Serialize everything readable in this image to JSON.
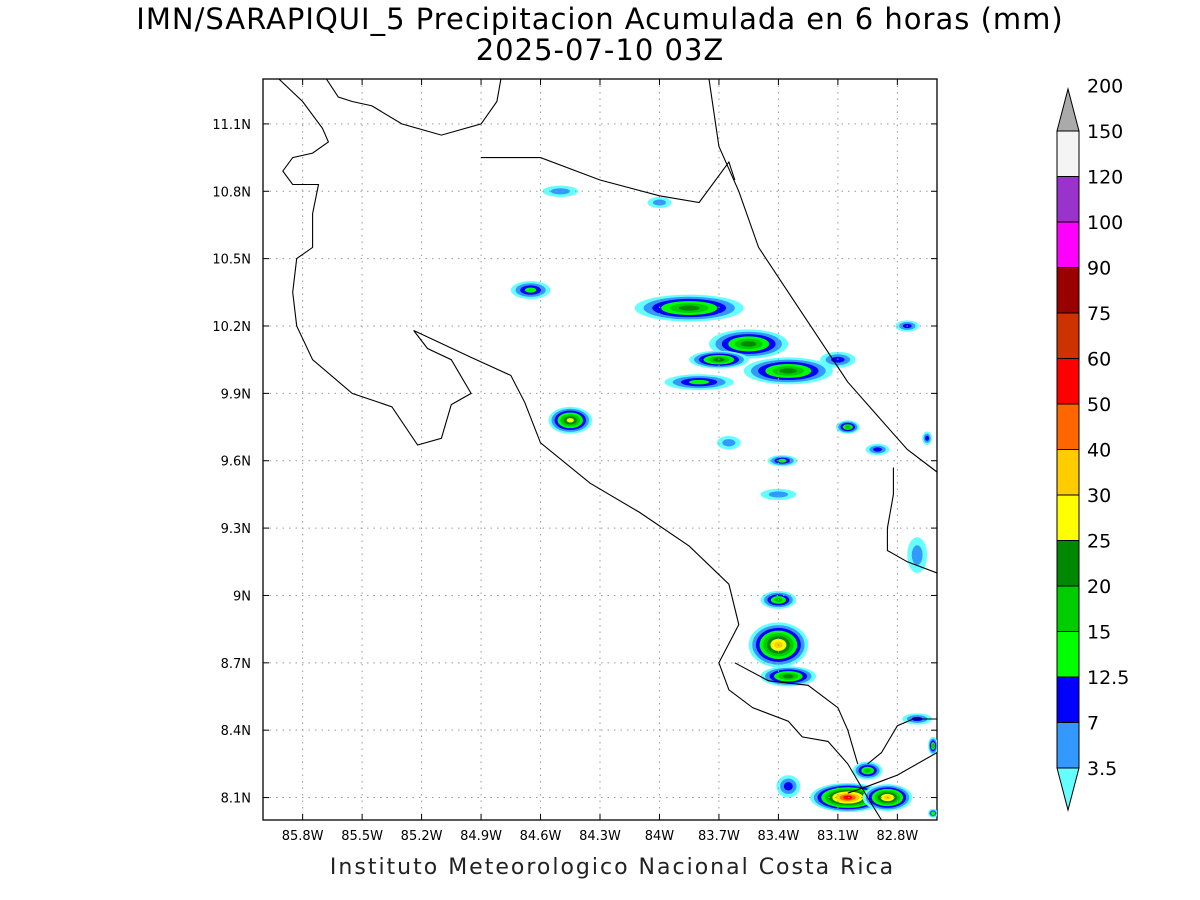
{
  "title": "IMN/SARAPIQUI_5 Precipitacion Acumulada en 6 horas (mm)",
  "subtitle": "2025-07-10 03Z",
  "footer": "Instituto Meteorologico Nacional Costa Rica",
  "map": {
    "lon_range": [
      -86.0,
      -82.6
    ],
    "lat_range": [
      8.0,
      11.3
    ],
    "lon_ticks": [
      {
        "value": -85.8,
        "label": "85.8W"
      },
      {
        "value": -85.5,
        "label": "85.5W"
      },
      {
        "value": -85.2,
        "label": "85.2W"
      },
      {
        "value": -84.9,
        "label": "84.9W"
      },
      {
        "value": -84.6,
        "label": "84.6W"
      },
      {
        "value": -84.3,
        "label": "84.3W"
      },
      {
        "value": -84.0,
        "label": "84W"
      },
      {
        "value": -83.7,
        "label": "83.7W"
      },
      {
        "value": -83.4,
        "label": "83.4W"
      },
      {
        "value": -83.1,
        "label": "83.1W"
      },
      {
        "value": -82.8,
        "label": "82.8W"
      }
    ],
    "lat_ticks": [
      {
        "value": 11.1,
        "label": "11.1N"
      },
      {
        "value": 10.8,
        "label": "10.8N"
      },
      {
        "value": 10.5,
        "label": "10.5N"
      },
      {
        "value": 10.2,
        "label": "10.2N"
      },
      {
        "value": 9.9,
        "label": "9.9N"
      },
      {
        "value": 9.6,
        "label": "9.6N"
      },
      {
        "value": 9.3,
        "label": "9.3N"
      },
      {
        "value": 9.0,
        "label": "9N"
      },
      {
        "value": 8.7,
        "label": "8.7N"
      },
      {
        "value": 8.4,
        "label": "8.4N"
      },
      {
        "value": 8.1,
        "label": "8.1N"
      }
    ],
    "grid": true
  },
  "colorbar": {
    "levels": [
      "3.5",
      "7",
      "12.5",
      "15",
      "20",
      "25",
      "30",
      "40",
      "50",
      "60",
      "75",
      "90",
      "100",
      "120",
      "150",
      "200"
    ],
    "colors": [
      "#66ffff",
      "#3399ff",
      "#0000ff",
      "#00ff00",
      "#00cc00",
      "#008800",
      "#ffff00",
      "#ffcc00",
      "#ff6600",
      "#ff0000",
      "#cc3300",
      "#990000",
      "#ff00ff",
      "#9933cc",
      "#f4f4f4",
      "#aaaaaa"
    ]
  },
  "precip_cells": [
    {
      "lon": -84.5,
      "lat": 10.8,
      "level": 1,
      "w": 0.18,
      "h": 0.05
    },
    {
      "lon": -84.0,
      "lat": 10.75,
      "level": 1,
      "w": 0.12,
      "h": 0.05
    },
    {
      "lon": -84.65,
      "lat": 10.36,
      "level": 3,
      "w": 0.2,
      "h": 0.08
    },
    {
      "lon": -84.45,
      "lat": 9.78,
      "level": 6,
      "w": 0.22,
      "h": 0.12
    },
    {
      "lon": -83.85,
      "lat": 10.28,
      "level": 5,
      "w": 0.55,
      "h": 0.12
    },
    {
      "lon": -83.55,
      "lat": 10.12,
      "level": 5,
      "w": 0.4,
      "h": 0.13
    },
    {
      "lon": -83.7,
      "lat": 10.05,
      "level": 5,
      "w": 0.3,
      "h": 0.08
    },
    {
      "lon": -83.35,
      "lat": 10.0,
      "level": 5,
      "w": 0.45,
      "h": 0.12
    },
    {
      "lon": -83.8,
      "lat": 9.95,
      "level": 3,
      "w": 0.35,
      "h": 0.07
    },
    {
      "lon": -83.1,
      "lat": 10.05,
      "level": 2,
      "w": 0.18,
      "h": 0.07
    },
    {
      "lon": -82.75,
      "lat": 10.2,
      "level": 2,
      "w": 0.12,
      "h": 0.05
    },
    {
      "lon": -83.05,
      "lat": 9.75,
      "level": 4,
      "w": 0.12,
      "h": 0.06
    },
    {
      "lon": -82.9,
      "lat": 9.65,
      "level": 2,
      "w": 0.12,
      "h": 0.05
    },
    {
      "lon": -82.65,
      "lat": 9.7,
      "level": 2,
      "w": 0.05,
      "h": 0.06
    },
    {
      "lon": -83.38,
      "lat": 9.6,
      "level": 3,
      "w": 0.15,
      "h": 0.05
    },
    {
      "lon": -83.65,
      "lat": 9.68,
      "level": 1,
      "w": 0.12,
      "h": 0.06
    },
    {
      "lon": -83.4,
      "lat": 9.45,
      "level": 1,
      "w": 0.18,
      "h": 0.05
    },
    {
      "lon": -82.7,
      "lat": 9.18,
      "level": 1,
      "w": 0.1,
      "h": 0.16
    },
    {
      "lon": -83.4,
      "lat": 8.98,
      "level": 4,
      "w": 0.18,
      "h": 0.08
    },
    {
      "lon": -83.4,
      "lat": 8.78,
      "level": 7,
      "w": 0.3,
      "h": 0.2
    },
    {
      "lon": -83.35,
      "lat": 8.64,
      "level": 5,
      "w": 0.28,
      "h": 0.09
    },
    {
      "lon": -82.7,
      "lat": 8.45,
      "level": 2,
      "w": 0.15,
      "h": 0.05
    },
    {
      "lon": -82.62,
      "lat": 8.33,
      "level": 4,
      "w": 0.05,
      "h": 0.08
    },
    {
      "lon": -83.05,
      "lat": 8.1,
      "level": 9,
      "w": 0.38,
      "h": 0.13
    },
    {
      "lon": -82.85,
      "lat": 8.1,
      "level": 7,
      "w": 0.25,
      "h": 0.12
    },
    {
      "lon": -82.95,
      "lat": 8.22,
      "level": 4,
      "w": 0.15,
      "h": 0.08
    },
    {
      "lon": -83.35,
      "lat": 8.15,
      "level": 2,
      "w": 0.12,
      "h": 0.1
    },
    {
      "lon": -82.62,
      "lat": 8.03,
      "level": 3,
      "w": 0.05,
      "h": 0.04
    }
  ],
  "coastlines": [
    [
      [
        -85.92,
        11.3
      ],
      [
        -85.8,
        11.2
      ],
      [
        -85.7,
        11.08
      ],
      [
        -85.67,
        11.02
      ],
      [
        -85.75,
        10.97
      ],
      [
        -85.85,
        10.95
      ],
      [
        -85.9,
        10.89
      ],
      [
        -85.85,
        10.83
      ],
      [
        -85.72,
        10.83
      ],
      [
        -85.75,
        10.7
      ],
      [
        -85.75,
        10.55
      ],
      [
        -85.83,
        10.5
      ],
      [
        -85.85,
        10.35
      ],
      [
        -85.83,
        10.2
      ],
      [
        -85.75,
        10.05
      ],
      [
        -85.55,
        9.9
      ],
      [
        -85.35,
        9.84
      ],
      [
        -85.22,
        9.67
      ],
      [
        -85.1,
        9.7
      ],
      [
        -85.05,
        9.85
      ],
      [
        -84.95,
        9.9
      ],
      [
        -85.05,
        10.05
      ],
      [
        -85.17,
        10.1
      ],
      [
        -85.24,
        10.18
      ],
      [
        -84.95,
        10.06
      ],
      [
        -84.75,
        9.98
      ],
      [
        -84.68,
        9.86
      ],
      [
        -84.6,
        9.68
      ],
      [
        -84.35,
        9.5
      ],
      [
        -84.1,
        9.37
      ],
      [
        -83.85,
        9.22
      ],
      [
        -83.65,
        9.05
      ],
      [
        -83.6,
        8.87
      ],
      [
        -83.7,
        8.7
      ],
      [
        -83.65,
        8.58
      ],
      [
        -83.53,
        8.5
      ],
      [
        -83.35,
        8.44
      ],
      [
        -83.28,
        8.37
      ],
      [
        -83.15,
        8.35
      ],
      [
        -83.05,
        8.25
      ],
      [
        -82.95,
        8.1
      ],
      [
        -82.88,
        8.0
      ]
    ],
    [
      [
        -83.62,
        8.7
      ],
      [
        -83.45,
        8.62
      ],
      [
        -83.25,
        8.6
      ],
      [
        -83.1,
        8.5
      ],
      [
        -83.05,
        8.4
      ],
      [
        -83.0,
        8.25
      ]
    ],
    [
      [
        -85.68,
        11.3
      ],
      [
        -85.62,
        11.22
      ],
      [
        -85.55,
        11.2
      ],
      [
        -85.45,
        11.18
      ],
      [
        -85.3,
        11.1
      ],
      [
        -85.1,
        11.05
      ],
      [
        -84.9,
        11.1
      ],
      [
        -84.82,
        11.2
      ],
      [
        -84.8,
        11.3
      ]
    ],
    [
      [
        -84.9,
        10.95
      ],
      [
        -84.6,
        10.95
      ],
      [
        -84.3,
        10.85
      ],
      [
        -84.0,
        10.78
      ],
      [
        -83.8,
        10.75
      ],
      [
        -83.65,
        10.93
      ],
      [
        -83.62,
        10.85
      ]
    ],
    [
      [
        -83.75,
        11.3
      ],
      [
        -83.7,
        11.0
      ],
      [
        -83.6,
        10.8
      ],
      [
        -83.5,
        10.55
      ],
      [
        -83.35,
        10.35
      ],
      [
        -83.2,
        10.15
      ],
      [
        -83.05,
        9.95
      ],
      [
        -82.9,
        9.8
      ],
      [
        -82.75,
        9.65
      ],
      [
        -82.6,
        9.55
      ]
    ],
    [
      [
        -82.6,
        8.45
      ],
      [
        -82.72,
        8.45
      ],
      [
        -82.8,
        8.42
      ],
      [
        -82.88,
        8.3
      ],
      [
        -82.95,
        8.25
      ]
    ],
    [
      [
        -82.82,
        9.57
      ],
      [
        -82.82,
        9.45
      ],
      [
        -82.85,
        9.3
      ],
      [
        -82.85,
        9.2
      ],
      [
        -82.75,
        9.15
      ],
      [
        -82.6,
        9.1
      ]
    ],
    [
      [
        -83.05,
        8.12
      ],
      [
        -82.95,
        8.15
      ],
      [
        -82.8,
        8.2
      ],
      [
        -82.6,
        8.3
      ]
    ]
  ]
}
